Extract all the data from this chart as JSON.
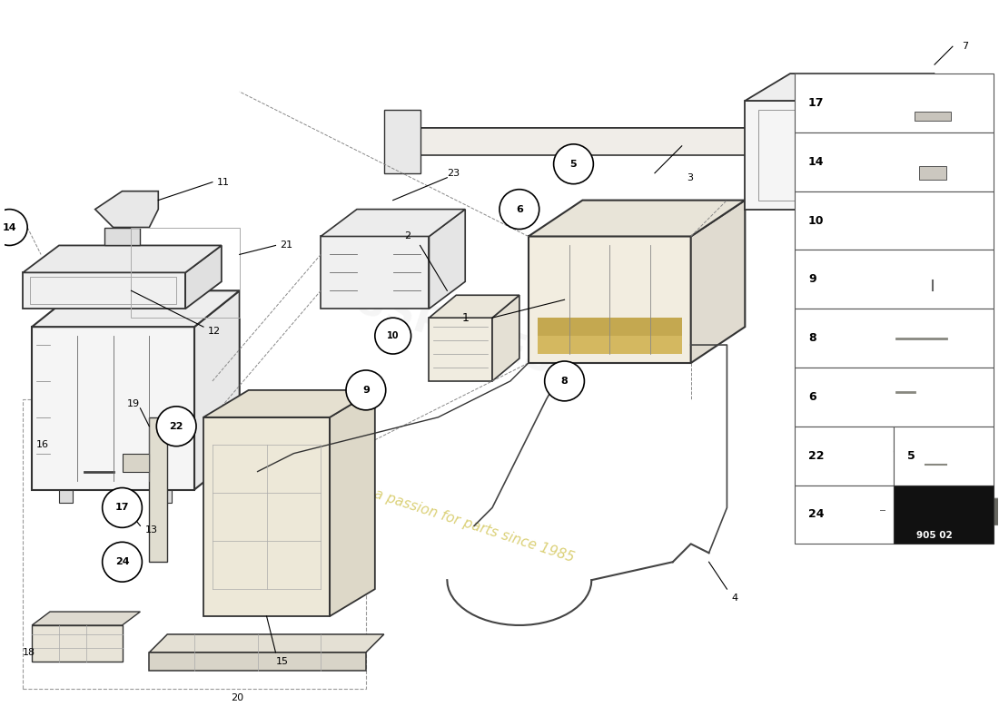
{
  "background_color": "#ffffff",
  "watermark_text": "a passion for parts since 1985",
  "part_number": "905 02",
  "watermark_logo": "GUSPARES",
  "table_nums_single": [
    "17",
    "14",
    "10",
    "9",
    "8",
    "6"
  ],
  "table_nums_double_left": [
    "22"
  ],
  "table_nums_double_right": [
    "5"
  ],
  "table_nums_bottom_left": [
    "24"
  ],
  "arrow_label": "905 02"
}
